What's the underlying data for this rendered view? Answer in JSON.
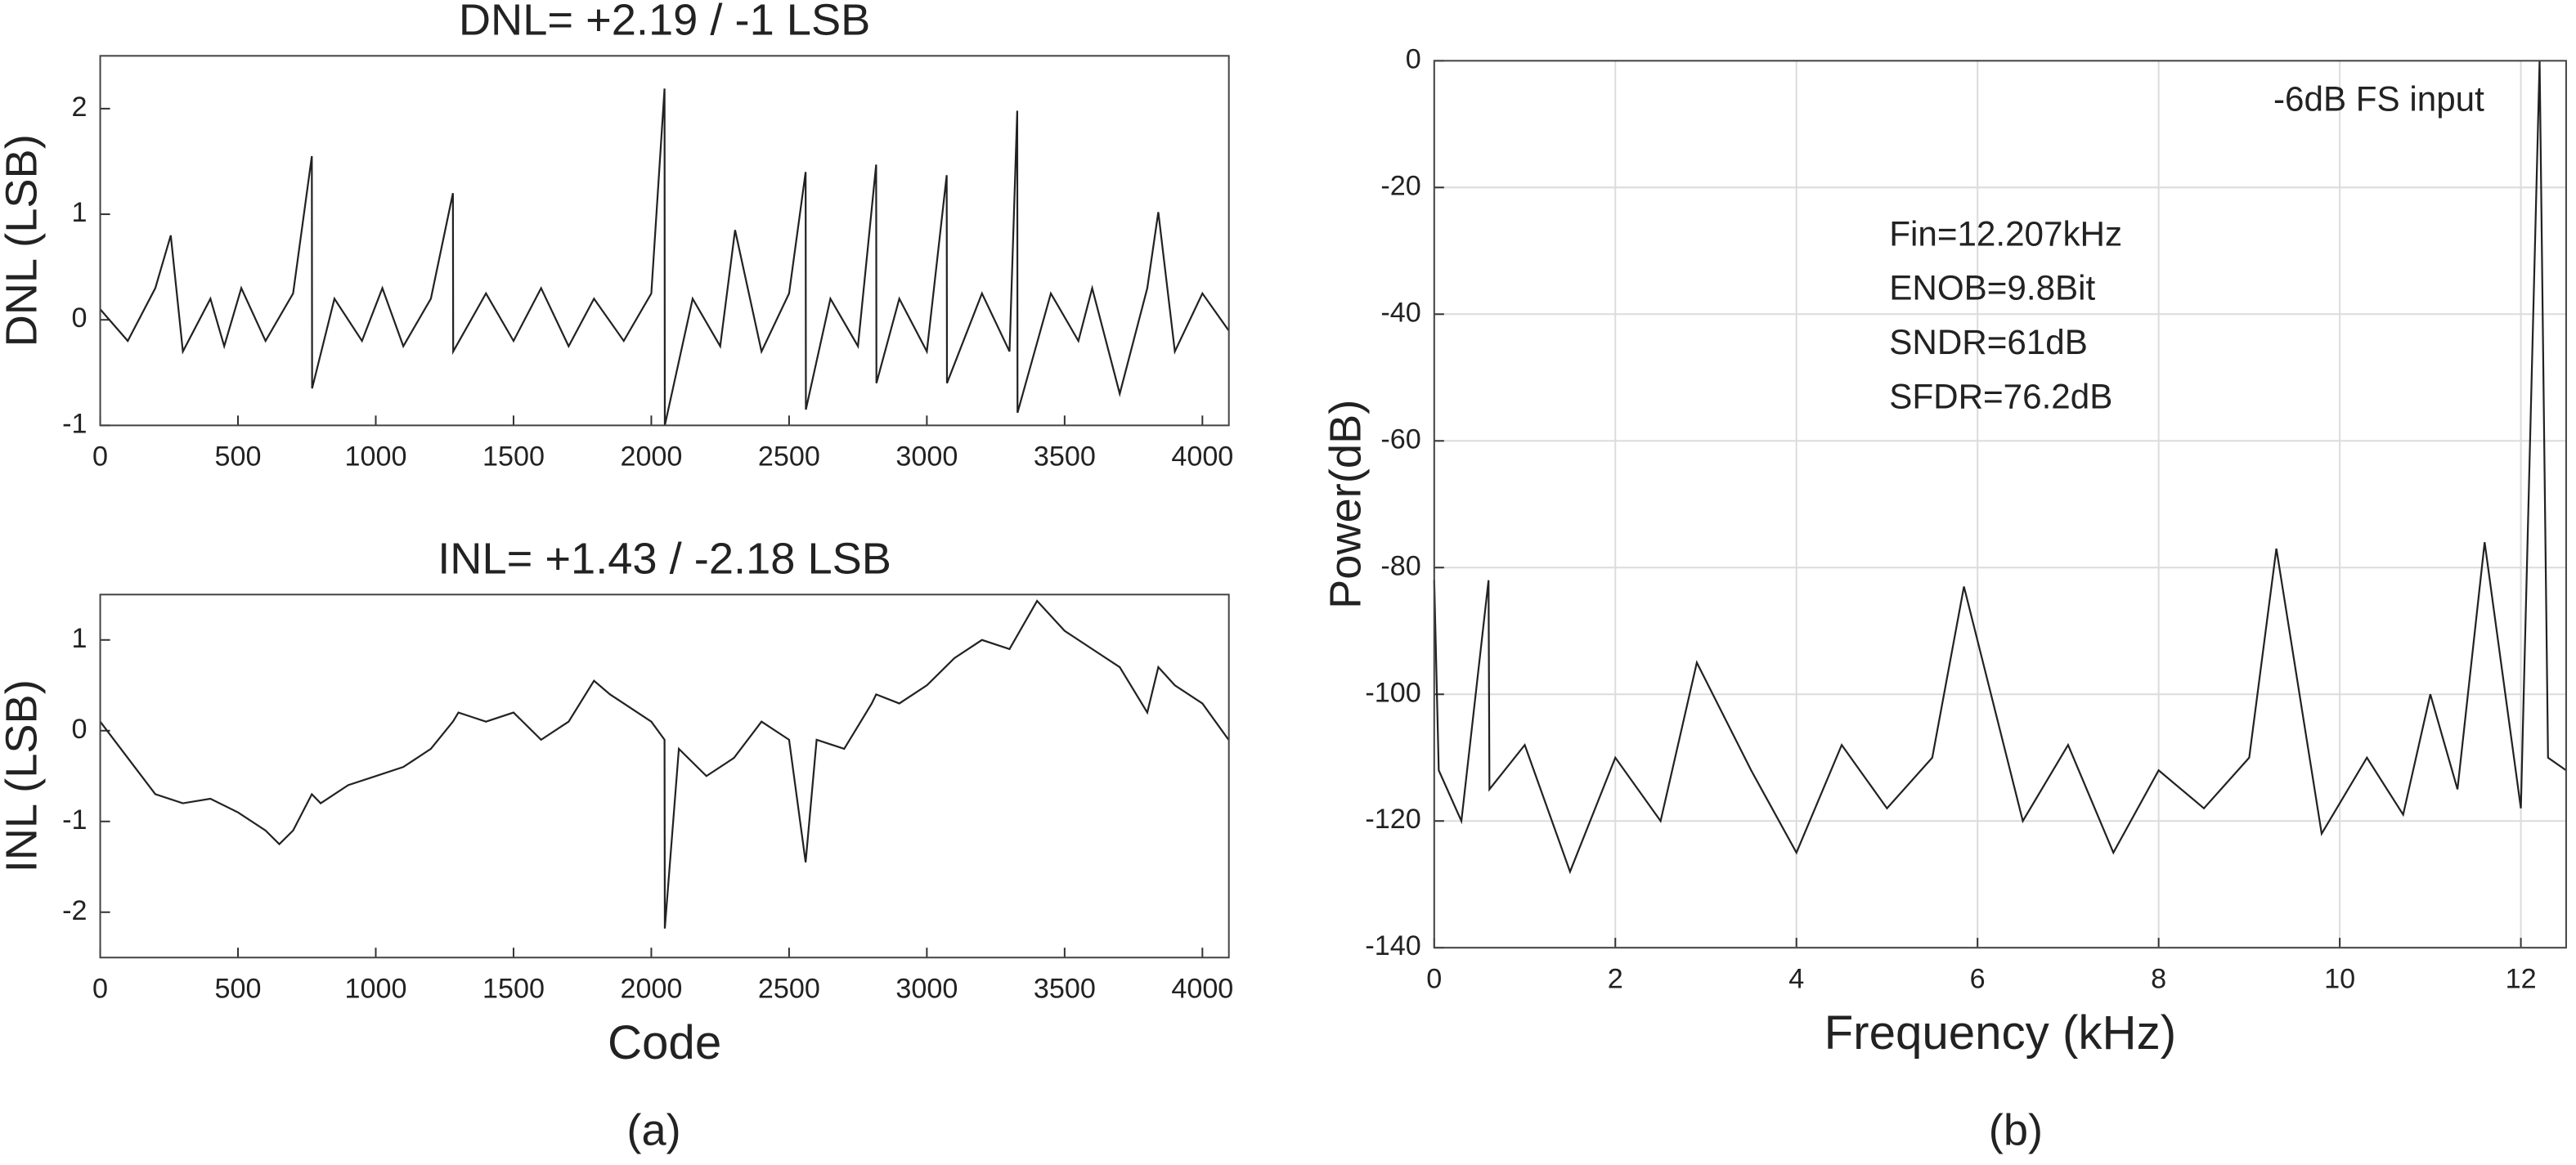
{
  "chart_data": [
    {
      "type": "line",
      "title": "DNL= +2.19 / -1 LSB",
      "ylabel": "DNL (LSB)",
      "x": [
        0,
        100,
        200,
        256,
        300,
        400,
        450,
        512,
        600,
        700,
        768,
        769,
        850,
        950,
        1024,
        1100,
        1200,
        1280,
        1281,
        1400,
        1500,
        1600,
        1700,
        1792,
        1900,
        2000,
        2048,
        2049,
        2150,
        2250,
        2304,
        2400,
        2500,
        2560,
        2561,
        2650,
        2750,
        2816,
        2817,
        2900,
        3000,
        3072,
        3073,
        3200,
        3300,
        3328,
        3329,
        3450,
        3550,
        3600,
        3700,
        3800,
        3840,
        3900,
        4000,
        4095
      ],
      "values": [
        0.1,
        -0.2,
        0.3,
        0.8,
        -0.3,
        0.2,
        -0.25,
        0.3,
        -0.2,
        0.25,
        1.55,
        -0.65,
        0.2,
        -0.2,
        0.3,
        -0.25,
        0.2,
        1.2,
        -0.3,
        0.25,
        -0.2,
        0.3,
        -0.25,
        0.2,
        -0.2,
        0.25,
        2.19,
        -1,
        0.2,
        -0.25,
        0.85,
        -0.3,
        0.25,
        1.4,
        -0.85,
        0.2,
        -0.25,
        1.47,
        -0.6,
        0.2,
        -0.3,
        1.37,
        -0.6,
        0.25,
        -0.3,
        1.98,
        -0.88,
        0.25,
        -0.2,
        0.3,
        -0.7,
        0.3,
        1.02,
        -0.3,
        0.25,
        -0.1
      ],
      "color": "#222222",
      "xlim": [
        0,
        4096
      ],
      "ylim": [
        -1,
        2.5
      ],
      "xticks": [
        0,
        500,
        1000,
        1500,
        2000,
        2500,
        3000,
        3500,
        4000
      ],
      "yticks": [
        -1,
        0,
        1,
        2
      ],
      "grid": false
    },
    {
      "type": "line",
      "title": "INL= +1.43 / -2.18 LSB",
      "ylabel": "INL (LSB)",
      "xlabel": "Code",
      "x": [
        0,
        100,
        200,
        300,
        400,
        500,
        600,
        650,
        700,
        768,
        800,
        900,
        1000,
        1100,
        1200,
        1280,
        1300,
        1350,
        1400,
        1500,
        1600,
        1700,
        1792,
        1850,
        1900,
        2000,
        2048,
        2049,
        2100,
        2200,
        2300,
        2400,
        2500,
        2560,
        2600,
        2700,
        2800,
        2816,
        2900,
        3000,
        3100,
        3200,
        3300,
        3400,
        3500,
        3600,
        3700,
        3800,
        3840,
        3900,
        4000,
        4095
      ],
      "values": [
        0.1,
        -0.3,
        -0.7,
        -0.8,
        -0.75,
        -0.9,
        -1.1,
        -1.25,
        -1.1,
        -0.7,
        -0.8,
        -0.6,
        -0.5,
        -0.4,
        -0.2,
        0.1,
        0.2,
        0.15,
        0.1,
        0.2,
        -0.1,
        0.1,
        0.55,
        0.4,
        0.3,
        0.1,
        -0.1,
        -2.18,
        -0.2,
        -0.5,
        -0.3,
        0.1,
        -0.1,
        -1.45,
        -0.1,
        -0.2,
        0.3,
        0.4,
        0.3,
        0.5,
        0.8,
        1.0,
        0.9,
        1.43,
        1.1,
        0.9,
        0.7,
        0.2,
        0.7,
        0.5,
        0.3,
        -0.1
      ],
      "color": "#222222",
      "xlim": [
        0,
        4096
      ],
      "ylim": [
        -2.5,
        1.5
      ],
      "xticks": [
        0,
        500,
        1000,
        1500,
        2000,
        2500,
        3000,
        3500,
        4000
      ],
      "yticks": [
        -2,
        -1,
        0,
        1
      ],
      "grid": false
    },
    {
      "type": "line",
      "ylabel": "Power(dB)",
      "xlabel": "Frequency (kHz)",
      "annotations": [
        "-6dB FS input",
        "Fin=12.207kHz",
        "ENOB=9.8Bit",
        "SNDR=61dB",
        "SFDR=76.2dB"
      ],
      "x": [
        0,
        0.05,
        0.3,
        0.6,
        0.61,
        1,
        1.5,
        2,
        2.5,
        2.9,
        3.5,
        4,
        4.5,
        5,
        5.5,
        5.85,
        6.5,
        7,
        7.5,
        8,
        8.5,
        9,
        9.3,
        9.8,
        10.3,
        10.7,
        11,
        11.3,
        11.6,
        12,
        12.207,
        12.3,
        12.5
      ],
      "values": [
        -82,
        -112,
        -120,
        -82,
        -115,
        -108,
        -128,
        -110,
        -120,
        -95,
        -112,
        -125,
        -108,
        -118,
        -110,
        -83,
        -120,
        -108,
        -125,
        -112,
        -118,
        -110,
        -77,
        -122,
        -110,
        -119,
        -100,
        -115,
        -76,
        -118,
        0,
        -110,
        -112
      ],
      "color": "#222222",
      "xlim": [
        0,
        12.5
      ],
      "ylim": [
        -140,
        0
      ],
      "xticks": [
        0,
        2,
        4,
        6,
        8,
        10,
        12
      ],
      "yticks": [
        -140,
        -120,
        -100,
        -80,
        -60,
        -40,
        -20,
        0
      ],
      "grid": true
    }
  ],
  "captions": [
    "(a)",
    "(b)"
  ]
}
